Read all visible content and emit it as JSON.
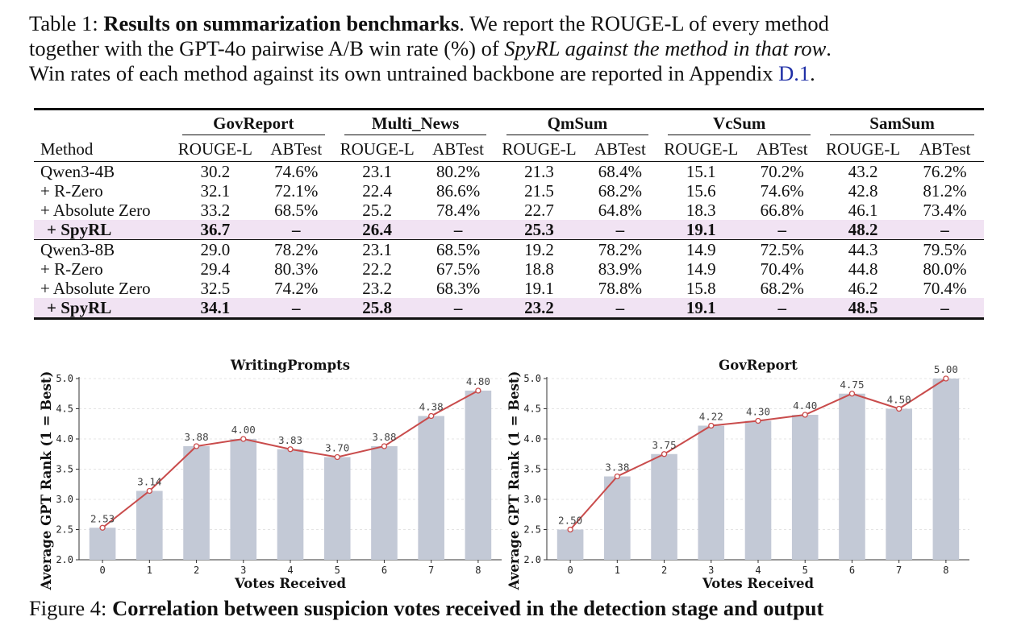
{
  "caption": {
    "label": "Table 1:",
    "title": "Results on summarization benchmarks",
    "line1_rest": ". We report the ROUGE-L of every method",
    "line2_a": "together with the GPT-4o pairwise A/B win rate (%) of ",
    "line2_italic": "SpyRL against the method in that row",
    "line2_b": ".",
    "line3_a": "Win rates of each method against its own untrained backbone are reported in Appendix ",
    "line3_link": "D.1",
    "line3_b": "."
  },
  "table": {
    "groups": [
      "GovReport",
      "Multi_News",
      "QmSum",
      "VcSum",
      "SamSum"
    ],
    "method_header": "Method",
    "sub_a": "ROUGE-L",
    "sub_b": "ABTest",
    "rows": [
      {
        "method": "Qwen3-4B",
        "cells": [
          "30.2",
          "74.6%",
          "23.1",
          "80.2%",
          "21.3",
          "68.4%",
          "15.1",
          "70.2%",
          "43.2",
          "76.2%"
        ]
      },
      {
        "method": "+ R-Zero",
        "cells": [
          "32.1",
          "72.1%",
          "22.4",
          "86.6%",
          "21.5",
          "68.2%",
          "15.6",
          "74.6%",
          "42.8",
          "81.2%"
        ]
      },
      {
        "method": "+ Absolute Zero",
        "cells": [
          "33.2",
          "68.5%",
          "25.2",
          "78.4%",
          "22.7",
          "64.8%",
          "18.3",
          "66.8%",
          "46.1",
          "73.4%"
        ]
      },
      {
        "method": "+ SpyRL",
        "cells": [
          "36.7",
          "–",
          "26.4",
          "–",
          "25.3",
          "–",
          "19.1",
          "–",
          "48.2",
          "–"
        ]
      },
      {
        "method": "Qwen3-8B",
        "cells": [
          "29.0",
          "78.2%",
          "23.1",
          "68.5%",
          "19.2",
          "78.2%",
          "14.9",
          "72.5%",
          "44.3",
          "79.5%"
        ]
      },
      {
        "method": "+ R-Zero",
        "cells": [
          "29.4",
          "80.3%",
          "22.2",
          "67.5%",
          "18.8",
          "83.9%",
          "14.9",
          "70.4%",
          "44.8",
          "80.0%"
        ]
      },
      {
        "method": "+ Absolute Zero",
        "cells": [
          "32.5",
          "74.2%",
          "23.2",
          "68.3%",
          "19.1",
          "78.8%",
          "15.8",
          "68.2%",
          "46.2",
          "70.4%"
        ]
      },
      {
        "method": "+ SpyRL",
        "cells": [
          "34.1",
          "–",
          "25.8",
          "–",
          "23.2",
          "–",
          "19.1",
          "–",
          "48.5",
          "–"
        ]
      }
    ]
  },
  "chart_data": [
    {
      "type": "bar",
      "title": "WritingPrompts",
      "xlabel": "Votes Received",
      "ylabel": "Average GPT Rank (1 = Best)",
      "categories": [
        "0",
        "1",
        "2",
        "3",
        "4",
        "5",
        "6",
        "7",
        "8"
      ],
      "values": [
        2.53,
        3.14,
        3.88,
        4.0,
        3.83,
        3.7,
        3.88,
        4.38,
        4.8
      ],
      "labels": [
        "2.53",
        "3.14",
        "3.88",
        "4.00",
        "3.83",
        "3.70",
        "3.88",
        "4.38",
        "4.80"
      ],
      "ylim": [
        2.0,
        5.0
      ],
      "yticks": [
        "2.0",
        "2.5",
        "3.0",
        "3.5",
        "4.0",
        "4.5",
        "5.0"
      ],
      "overlay": "line",
      "grid": true,
      "bar_color": "#c3c9d6",
      "line_color": "#c94c4c"
    },
    {
      "type": "bar",
      "title": "GovReport",
      "xlabel": "Votes Received",
      "ylabel": "Average GPT Rank (1 = Best)",
      "categories": [
        "0",
        "1",
        "2",
        "3",
        "4",
        "5",
        "6",
        "7",
        "8"
      ],
      "values": [
        2.5,
        3.38,
        3.75,
        4.22,
        4.3,
        4.4,
        4.75,
        4.5,
        5.0
      ],
      "labels": [
        "2.50",
        "3.38",
        "3.75",
        "4.22",
        "4.30",
        "4.40",
        "4.75",
        "4.50",
        "5.00"
      ],
      "ylim": [
        2.0,
        5.0
      ],
      "yticks": [
        "2.0",
        "2.5",
        "3.0",
        "3.5",
        "4.0",
        "4.5",
        "5.0"
      ],
      "overlay": "line",
      "grid": true,
      "bar_color": "#c3c9d6",
      "line_color": "#c94c4c"
    }
  ],
  "figure_caption": {
    "label": "Figure 4:",
    "title": "Correlation between suspicion votes received in the detection stage and output"
  }
}
